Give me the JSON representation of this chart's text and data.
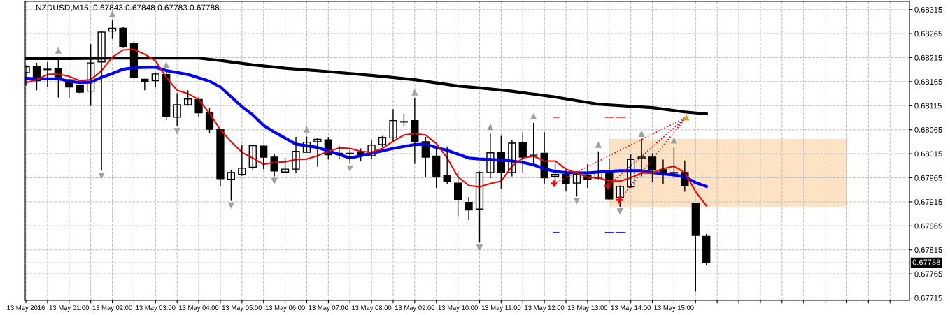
{
  "chart_data": {
    "type": "candlestick",
    "title": "NZDUSD,M15  0.67843 0.67848 0.67783 0.67788",
    "x": [
      "2016-05-13T00:00",
      "2016-05-13T00:15",
      "2016-05-13T00:30",
      "2016-05-13T00:45",
      "2016-05-13T01:00",
      "2016-05-13T01:15",
      "2016-05-13T01:30",
      "2016-05-13T01:45",
      "2016-05-13T02:00",
      "2016-05-13T02:15",
      "2016-05-13T02:30",
      "2016-05-13T02:45",
      "2016-05-13T03:00",
      "2016-05-13T03:15",
      "2016-05-13T03:30",
      "2016-05-13T03:45",
      "2016-05-13T04:00",
      "2016-05-13T04:15",
      "2016-05-13T04:30",
      "2016-05-13T04:45",
      "2016-05-13T05:00",
      "2016-05-13T05:15",
      "2016-05-13T05:30",
      "2016-05-13T05:45",
      "2016-05-13T06:00",
      "2016-05-13T06:15",
      "2016-05-13T06:30",
      "2016-05-13T06:45",
      "2016-05-13T07:00",
      "2016-05-13T07:15",
      "2016-05-13T07:30",
      "2016-05-13T07:45",
      "2016-05-13T08:00",
      "2016-05-13T08:15",
      "2016-05-13T08:30",
      "2016-05-13T08:45",
      "2016-05-13T09:00",
      "2016-05-13T09:15",
      "2016-05-13T09:30",
      "2016-05-13T09:45",
      "2016-05-13T10:00",
      "2016-05-13T10:15",
      "2016-05-13T10:30",
      "2016-05-13T10:45",
      "2016-05-13T11:00",
      "2016-05-13T11:15",
      "2016-05-13T11:30",
      "2016-05-13T11:45",
      "2016-05-13T12:00",
      "2016-05-13T12:15",
      "2016-05-13T12:30",
      "2016-05-13T12:45",
      "2016-05-13T13:00",
      "2016-05-13T13:15",
      "2016-05-13T13:30",
      "2016-05-13T13:45",
      "2016-05-13T14:00",
      "2016-05-13T14:15",
      "2016-05-13T14:30",
      "2016-05-13T14:45",
      "2016-05-13T15:00",
      "2016-05-13T15:15",
      "2016-05-13T15:30",
      "2016-05-13T15:45"
    ],
    "ohlc": [
      [
        0.68184,
        0.68199,
        0.68157,
        0.68196
      ],
      [
        0.68196,
        0.68204,
        0.68147,
        0.68167
      ],
      [
        0.68191,
        0.68206,
        0.68154,
        0.6819
      ],
      [
        0.68192,
        0.68215,
        0.68132,
        0.68175
      ],
      [
        0.68169,
        0.68171,
        0.6813,
        0.68154
      ],
      [
        0.68157,
        0.68158,
        0.68141,
        0.68143
      ],
      [
        0.68145,
        0.68243,
        0.68115,
        0.68204
      ],
      [
        0.68206,
        0.68269,
        0.6798,
        0.68268
      ],
      [
        0.6827,
        0.68293,
        0.68254,
        0.68276
      ],
      [
        0.68276,
        0.68279,
        0.68235,
        0.68238
      ],
      [
        0.68244,
        0.6825,
        0.68171,
        0.68174
      ],
      [
        0.6817,
        0.68171,
        0.68147,
        0.68165
      ],
      [
        0.68167,
        0.68184,
        0.68153,
        0.68181
      ],
      [
        0.6818,
        0.68186,
        0.68085,
        0.68092
      ],
      [
        0.68091,
        0.68141,
        0.68073,
        0.68117
      ],
      [
        0.68117,
        0.68147,
        0.68115,
        0.68129
      ],
      [
        0.68128,
        0.68132,
        0.68091,
        0.681
      ],
      [
        0.681,
        0.68111,
        0.68057,
        0.68066
      ],
      [
        0.68066,
        0.68067,
        0.67947,
        0.67963
      ],
      [
        0.67962,
        0.67982,
        0.67917,
        0.67976
      ],
      [
        0.67972,
        0.68034,
        0.67969,
        0.67985
      ],
      [
        0.67987,
        0.68033,
        0.67982,
        0.68032
      ],
      [
        0.68031,
        0.68032,
        0.67983,
        0.68008
      ],
      [
        0.68008,
        0.68015,
        0.67968,
        0.67979
      ],
      [
        0.67977,
        0.68007,
        0.67976,
        0.67983
      ],
      [
        0.67983,
        0.6805,
        0.67975,
        0.6802
      ],
      [
        0.68018,
        0.68051,
        0.68017,
        0.68039
      ],
      [
        0.6804,
        0.68047,
        0.67988,
        0.68045
      ],
      [
        0.68044,
        0.6805,
        0.68003,
        0.68013
      ],
      [
        0.68016,
        0.68031,
        0.68005,
        0.68014
      ],
      [
        0.68016,
        0.68023,
        0.67994,
        0.68015
      ],
      [
        0.68018,
        0.68026,
        0.67999,
        0.68011
      ],
      [
        0.68011,
        0.68044,
        0.68005,
        0.68033
      ],
      [
        0.68034,
        0.68052,
        0.68029,
        0.68049
      ],
      [
        0.68048,
        0.68108,
        0.68041,
        0.68084
      ],
      [
        0.68082,
        0.68098,
        0.68073,
        0.68081
      ],
      [
        0.68084,
        0.6813,
        0.67994,
        0.68041
      ],
      [
        0.6804,
        0.6805,
        0.67966,
        0.68008
      ],
      [
        0.6801,
        0.68031,
        0.67944,
        0.67968
      ],
      [
        0.67969,
        0.6803,
        0.67952,
        0.67957
      ],
      [
        0.67954,
        0.67978,
        0.67885,
        0.67919
      ],
      [
        0.67914,
        0.67925,
        0.67877,
        0.67898
      ],
      [
        0.679,
        0.67978,
        0.6783,
        0.67976
      ],
      [
        0.67976,
        0.68057,
        0.67964,
        0.68017
      ],
      [
        0.68017,
        0.68052,
        0.67941,
        0.67977
      ],
      [
        0.67976,
        0.68044,
        0.67968,
        0.68037
      ],
      [
        0.68039,
        0.6806,
        0.67975,
        0.68008
      ],
      [
        0.68011,
        0.68079,
        0.67993,
        0.68014
      ],
      [
        0.68016,
        0.6806,
        0.67953,
        0.67965
      ],
      [
        0.67968,
        0.67997,
        0.67946,
        0.67972
      ],
      [
        0.67972,
        0.67981,
        0.67937,
        0.67953
      ],
      [
        0.67954,
        0.67976,
        0.67926,
        0.67972
      ],
      [
        0.6797,
        0.67993,
        0.67944,
        0.67962
      ],
      [
        0.67964,
        0.6802,
        0.67962,
        0.67976
      ],
      [
        0.67976,
        0.68004,
        0.6792,
        0.67921
      ],
      [
        0.67924,
        0.67949,
        0.67904,
        0.67947
      ],
      [
        0.67946,
        0.68014,
        0.67944,
        0.68003
      ],
      [
        0.68005,
        0.68046,
        0.67968,
        0.68008
      ],
      [
        0.68008,
        0.68016,
        0.67957,
        0.67981
      ],
      [
        0.67982,
        0.68003,
        0.67952,
        0.67975
      ],
      [
        0.67976,
        0.68028,
        0.67966,
        0.67975
      ],
      [
        0.67976,
        0.68001,
        0.67936,
        0.67948
      ],
      [
        0.67912,
        0.67913,
        0.67728,
        0.67845
      ],
      [
        0.67843,
        0.67848,
        0.67783,
        0.67788
      ]
    ],
    "series": [
      {
        "type": "line",
        "color": "#fde3c4",
        "x": [
          "2016-05-13T13:30",
          "2016-05-13T19:00"
        ],
        "values": [
          null,
          null
        ],
        "lower": [
          0.67905,
          0.67905
        ],
        "upper": [
          0.68045,
          0.68045
        ]
      },
      {
        "type": "line",
        "color": "#000000",
        "x": [
          "2016-05-13T00:00",
          "2016-05-13T01:00",
          "2016-05-13T02:00",
          "2016-05-13T03:00",
          "2016-05-13T04:00",
          "2016-05-13T04:30",
          "2016-05-13T05:15",
          "2016-05-13T06:00",
          "2016-05-13T07:00",
          "2016-05-13T08:15",
          "2016-05-13T09:00",
          "2016-05-13T10:00",
          "2016-05-13T10:30",
          "2016-05-13T11:15",
          "2016-05-13T12:15",
          "2016-05-13T13:15",
          "2016-05-13T14:30",
          "2016-05-13T15:15",
          "2016-05-13T15:45"
        ],
        "values": [
          0.68213,
          0.68213,
          0.68214,
          0.68214,
          0.68214,
          0.68209,
          0.682,
          0.68193,
          0.68186,
          0.68176,
          0.68169,
          0.68156,
          0.68152,
          0.68145,
          0.68133,
          0.68118,
          0.68111,
          0.68102,
          0.68098
        ]
      },
      {
        "type": "line",
        "color": "#0000ff",
        "x": [
          "2016-05-13T00:00",
          "2016-05-13T00:15",
          "2016-05-13T00:45",
          "2016-05-13T01:00",
          "2016-05-13T01:15",
          "2016-05-13T01:30",
          "2016-05-13T01:45",
          "2016-05-13T02:00",
          "2016-05-13T02:15",
          "2016-05-13T02:30",
          "2016-05-13T03:00",
          "2016-05-13T03:15",
          "2016-05-13T03:45",
          "2016-05-13T04:15",
          "2016-05-13T04:30",
          "2016-05-13T05:00",
          "2016-05-13T05:15",
          "2016-05-13T05:30",
          "2016-05-13T05:45",
          "2016-05-13T06:15",
          "2016-05-13T06:45",
          "2016-05-13T07:00",
          "2016-05-13T07:30",
          "2016-05-13T08:00",
          "2016-05-13T08:30",
          "2016-05-13T09:00",
          "2016-05-13T09:15",
          "2016-05-13T09:30",
          "2016-05-13T09:45",
          "2016-05-13T10:00",
          "2016-05-13T10:15",
          "2016-05-13T10:30",
          "2016-05-13T11:00",
          "2016-05-13T11:15",
          "2016-05-13T11:30",
          "2016-05-13T11:45",
          "2016-05-13T12:00",
          "2016-05-13T12:15",
          "2016-05-13T12:30",
          "2016-05-13T13:00",
          "2016-05-13T13:15",
          "2016-05-13T13:45",
          "2016-05-13T14:15",
          "2016-05-13T14:30",
          "2016-05-13T14:45",
          "2016-05-13T15:00",
          "2016-05-13T15:15",
          "2016-05-13T15:30",
          "2016-05-13T15:45"
        ],
        "values": [
          0.68172,
          0.68171,
          0.68171,
          0.68166,
          0.68163,
          0.68164,
          0.68174,
          0.68182,
          0.68191,
          0.68194,
          0.68195,
          0.68188,
          0.6818,
          0.68166,
          0.68154,
          0.68113,
          0.68096,
          0.68074,
          0.6806,
          0.68035,
          0.68028,
          0.68021,
          0.68006,
          0.68016,
          0.68026,
          0.68034,
          0.68035,
          0.68028,
          0.68022,
          0.68014,
          0.68006,
          0.68004,
          0.68002,
          0.68,
          0.67997,
          0.67992,
          0.67984,
          0.67978,
          0.67976,
          0.67975,
          0.67977,
          0.6798,
          0.6798,
          0.67976,
          0.67973,
          0.67971,
          0.67967,
          0.67955,
          0.67947
        ]
      },
      {
        "type": "line",
        "color": "#ff0000",
        "values": [
          0.68163,
          0.68169,
          0.6818,
          0.68181,
          0.68176,
          0.68167,
          0.68169,
          0.68188,
          0.68216,
          0.68231,
          0.68232,
          0.68222,
          0.68208,
          0.68174,
          0.68147,
          0.6814,
          0.68128,
          0.68099,
          0.68065,
          0.6804,
          0.68018,
          0.68006,
          0.67993,
          0.67997,
          0.67998,
          0.68003,
          0.68004,
          0.68011,
          0.6802,
          0.68027,
          0.68026,
          0.6802,
          0.68018,
          0.68026,
          0.68041,
          0.68054,
          0.68057,
          0.68054,
          0.68036,
          0.68006,
          0.67967,
          0.67949,
          0.67946,
          0.67953,
          0.67958,
          0.67989,
          0.68006,
          0.6801,
          0.68,
          0.68,
          0.67983,
          0.67975,
          0.67966,
          0.67965,
          0.67958,
          0.67958,
          0.67965,
          0.67975,
          0.67975,
          0.67984,
          0.67989,
          0.67976,
          0.67936,
          0.67907
        ]
      },
      {
        "type": "line",
        "color": "#ff0000",
        "line_style": "dotted",
        "x": [
          "2016-05-13T12:13",
          "2016-05-13T15:17"
        ],
        "values": [
          0.67953,
          0.68091
        ]
      },
      {
        "type": "line",
        "color": "#ff0000",
        "line_style": "dotted",
        "x": [
          "2016-05-13T13:28",
          "2016-05-13T15:17"
        ],
        "values": [
          0.67948,
          0.68091
        ]
      },
      {
        "type": "line",
        "color": "#ff0000",
        "line_style": "dotted",
        "x": [
          "2016-05-13T13:44",
          "2016-05-13T15:17"
        ],
        "values": [
          0.67919,
          0.68091
        ]
      },
      {
        "type": "line",
        "color": "#ff0000",
        "x": [
          "2016-05-13T12:13",
          "2016-05-13T12:20"
        ],
        "values": [
          0.68091,
          0.68091
        ]
      },
      {
        "type": "line",
        "color": "#ff0000",
        "x": [
          "2016-05-13T13:25",
          "2016-05-13T13:35"
        ],
        "values": [
          0.68091,
          0.68091
        ]
      },
      {
        "type": "line",
        "color": "#ff0000",
        "x": [
          "2016-05-13T13:40",
          "2016-05-13T13:52"
        ],
        "values": [
          0.68091,
          0.68091
        ]
      },
      {
        "type": "line",
        "color": "#0000ff",
        "x": [
          "2016-05-13T12:13",
          "2016-05-13T12:20"
        ],
        "values": [
          0.67851,
          0.67851
        ]
      },
      {
        "type": "line",
        "color": "#0000ff",
        "x": [
          "2016-05-13T13:25",
          "2016-05-13T13:35"
        ],
        "values": [
          0.67851,
          0.67851
        ]
      },
      {
        "type": "line",
        "color": "#0000ff",
        "x": [
          "2016-05-13T13:40",
          "2016-05-13T13:52"
        ],
        "values": [
          0.67851,
          0.67851
        ]
      },
      {
        "type": "scatter",
        "color": "#ff0000",
        "marker": "cross",
        "x": [
          "2016-05-13T12:13",
          "2016-05-13T13:28",
          "2016-05-13T13:44"
        ],
        "values": [
          0.67953,
          0.67948,
          0.67919
        ]
      },
      {
        "type": "scatter",
        "color": "#daa520",
        "marker": "triangle",
        "x": [
          "2016-05-13T15:17"
        ],
        "values": [
          0.68091
        ]
      },
      {
        "type": "scatter",
        "color": "#a0a0a0",
        "marker": "triangle",
        "x": [
          "2016-05-13T00:45",
          "2016-05-13T02:00",
          "2016-05-13T03:15",
          "2016-05-13T06:30",
          "2016-05-13T09:00",
          "2016-05-13T10:45",
          "2016-05-13T11:45",
          "2016-05-13T13:15",
          "2016-05-13T14:15",
          "2016-05-13T15:00"
        ],
        "values": [
          0.6823,
          0.68306,
          0.682,
          0.68066,
          0.68143,
          0.68071,
          0.68093,
          0.68034,
          0.68057,
          0.68043
        ]
      },
      {
        "type": "scatter",
        "color": "#a0a0a0",
        "marker": "triangle-down",
        "x": [
          "2016-05-13T01:45",
          "2016-05-13T03:30",
          "2016-05-13T04:45",
          "2016-05-13T05:45",
          "2016-05-13T07:30",
          "2016-05-13T10:30",
          "2016-05-13T12:45",
          "2016-05-13T13:45"
        ],
        "values": [
          0.67969,
          0.68062,
          0.67907,
          0.67958,
          0.67984,
          0.67819,
          0.67917,
          0.67895
        ]
      }
    ],
    "ref_lines": [
      {
        "axis": "y",
        "value": 0.67788,
        "label": "0.67788",
        "color": "#c0c0c0"
      }
    ],
    "xlim": [
      "2016-05-12T23:59",
      "2016-05-13T20:27"
    ],
    "xticks": [
      {
        "value": "2016-05-13T00:00",
        "label": "13 May 2016"
      },
      {
        "value": "2016-05-13T00:30",
        "label": null
      },
      {
        "value": "2016-05-13T01:00",
        "label": "13 May 01:00"
      },
      {
        "value": "2016-05-13T01:30",
        "label": null
      },
      {
        "value": "2016-05-13T02:00",
        "label": "13 May 02:00"
      },
      {
        "value": "2016-05-13T02:30",
        "label": null
      },
      {
        "value": "2016-05-13T03:00",
        "label": "13 May 03:00"
      },
      {
        "value": "2016-05-13T03:30",
        "label": null
      },
      {
        "value": "2016-05-13T04:00",
        "label": "13 May 04:00"
      },
      {
        "value": "2016-05-13T04:30",
        "label": null
      },
      {
        "value": "2016-05-13T05:00",
        "label": "13 May 05:00"
      },
      {
        "value": "2016-05-13T05:30",
        "label": null
      },
      {
        "value": "2016-05-13T06:00",
        "label": "13 May 06:00"
      },
      {
        "value": "2016-05-13T06:30",
        "label": null
      },
      {
        "value": "2016-05-13T07:00",
        "label": "13 May 07:00"
      },
      {
        "value": "2016-05-13T07:30",
        "label": null
      },
      {
        "value": "2016-05-13T08:00",
        "label": "13 May 08:00"
      },
      {
        "value": "2016-05-13T08:30",
        "label": null
      },
      {
        "value": "2016-05-13T09:00",
        "label": "13 May 09:00"
      },
      {
        "value": "2016-05-13T09:30",
        "label": null
      },
      {
        "value": "2016-05-13T10:00",
        "label": "13 May 10:00"
      },
      {
        "value": "2016-05-13T10:30",
        "label": null
      },
      {
        "value": "2016-05-13T11:00",
        "label": "13 May 11:00"
      },
      {
        "value": "2016-05-13T11:30",
        "label": null
      },
      {
        "value": "2016-05-13T12:00",
        "label": "13 May 12:00"
      },
      {
        "value": "2016-05-13T12:30",
        "label": null
      },
      {
        "value": "2016-05-13T13:00",
        "label": "13 May 13:00"
      },
      {
        "value": "2016-05-13T13:30",
        "label": null
      },
      {
        "value": "2016-05-13T14:00",
        "label": "13 May 14:00"
      },
      {
        "value": "2016-05-13T14:30",
        "label": null
      },
      {
        "value": "2016-05-13T15:00",
        "label": "13 May 15:00"
      },
      {
        "value": "2016-05-13T15:30",
        "label": null
      },
      {
        "value": "2016-05-13T16:00",
        "label": null
      },
      {
        "value": "2016-05-13T16:30",
        "label": null
      },
      {
        "value": "2016-05-13T17:00",
        "label": null
      },
      {
        "value": "2016-05-13T17:30",
        "label": null
      },
      {
        "value": "2016-05-13T18:00",
        "label": null
      },
      {
        "value": "2016-05-13T18:30",
        "label": null
      },
      {
        "value": "2016-05-13T19:00",
        "label": null
      },
      {
        "value": "2016-05-13T19:30",
        "label": null
      },
      {
        "value": "2016-05-13T20:00",
        "label": null
      }
    ],
    "ylim": [
      0.6771,
      0.68332
    ],
    "yticks": [
      0.68315,
      0.68265,
      0.68215,
      0.68165,
      0.68115,
      0.68065,
      0.68015,
      0.67965,
      0.67915,
      0.67865,
      0.67815,
      0.67765,
      0.67715
    ],
    "grid": true
  }
}
